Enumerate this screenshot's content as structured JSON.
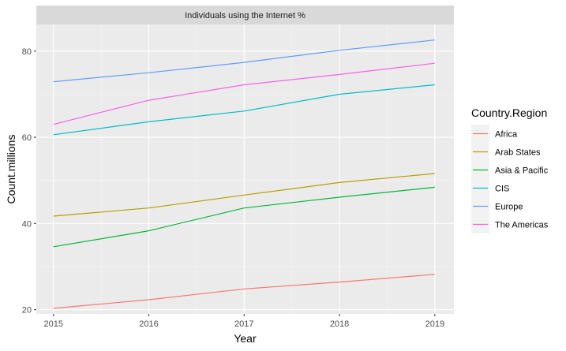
{
  "chart_data": {
    "type": "line",
    "title": "Individuals using the Internet %",
    "xlabel": "Year",
    "ylabel": "Count.millions",
    "x": [
      2015,
      2016,
      2017,
      2018,
      2019
    ],
    "x_tick_labels": [
      "2015",
      "2016",
      "2017",
      "2018",
      "2019"
    ],
    "y_ticks": [
      20,
      40,
      60,
      80
    ],
    "y_tick_labels": [
      "20",
      "40",
      "60",
      "80"
    ],
    "xlim": [
      2014.82,
      2019.2
    ],
    "ylim": [
      19.0,
      86.2
    ],
    "grid": true,
    "legend": {
      "title": "Country.Region",
      "position": "right"
    },
    "series": [
      {
        "name": "Africa",
        "color": "#F8766D",
        "values": [
          20.3,
          22.3,
          24.8,
          26.4,
          28.2
        ]
      },
      {
        "name": "Arab States",
        "color": "#B79F00",
        "values": [
          41.7,
          43.6,
          46.6,
          49.5,
          51.6
        ]
      },
      {
        "name": "Asia & Pacific",
        "color": "#00BA38",
        "values": [
          34.6,
          38.3,
          43.6,
          46.1,
          48.4
        ]
      },
      {
        "name": "CIS",
        "color": "#00BFC4",
        "values": [
          60.6,
          63.6,
          66.1,
          70.0,
          72.2
        ]
      },
      {
        "name": "Europe",
        "color": "#619CFF",
        "values": [
          72.9,
          75.0,
          77.4,
          80.2,
          82.6
        ]
      },
      {
        "name": "The Americas",
        "color": "#F564E3",
        "values": [
          63.0,
          68.6,
          72.2,
          74.6,
          77.2
        ]
      }
    ]
  }
}
